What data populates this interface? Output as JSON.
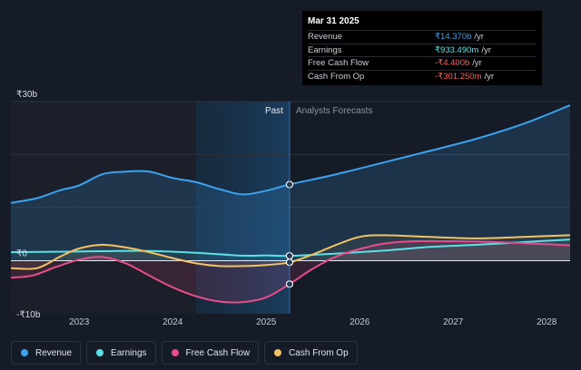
{
  "tooltip": {
    "date": "Mar 31 2025",
    "rows": [
      {
        "label": "Revenue",
        "value": "₹14.370b",
        "unit": "/yr",
        "color": "#3ba3f0"
      },
      {
        "label": "Earnings",
        "value": "₹933.490m",
        "unit": "/yr",
        "color": "#5ce1e6"
      },
      {
        "label": "Free Cash Flow",
        "value": "-₹4.400b",
        "unit": "/yr",
        "color": "#ff5c5c"
      },
      {
        "label": "Cash From Op",
        "value": "-₹301.250m",
        "unit": "/yr",
        "color": "#ff5c5c"
      }
    ]
  },
  "chart_data": {
    "type": "line",
    "x_ticks": [
      "2023",
      "2024",
      "2025",
      "2026",
      "2027",
      "2028"
    ],
    "y_ticks": [
      {
        "value": 30,
        "label": "₹30b"
      },
      {
        "value": 0,
        "label": "₹0"
      },
      {
        "value": -10,
        "label": "-₹10b"
      }
    ],
    "ylim": [
      -10.5,
      30
    ],
    "xlim": [
      2022.27,
      2028.25
    ],
    "past_label": "Past",
    "forecast_label": "Analysts Forecasts",
    "divider_x": 2025.25,
    "highlight_start": 2024.25,
    "series": [
      {
        "name": "Revenue",
        "color": "#3ba3f0",
        "points": [
          [
            2022.27,
            10.9
          ],
          [
            2022.55,
            11.8
          ],
          [
            2022.8,
            13.3
          ],
          [
            2023.0,
            14.2
          ],
          [
            2023.25,
            16.3
          ],
          [
            2023.5,
            16.8
          ],
          [
            2023.75,
            16.8
          ],
          [
            2024.0,
            15.6
          ],
          [
            2024.25,
            14.8
          ],
          [
            2024.5,
            13.5
          ],
          [
            2024.75,
            12.5
          ],
          [
            2025.0,
            13.2
          ],
          [
            2025.25,
            14.37
          ],
          [
            2025.75,
            16.3
          ],
          [
            2026.25,
            18.5
          ],
          [
            2026.75,
            20.7
          ],
          [
            2027.25,
            23.0
          ],
          [
            2027.75,
            25.8
          ],
          [
            2028.25,
            29.3
          ]
        ]
      },
      {
        "name": "Earnings",
        "color": "#5ce1e6",
        "points": [
          [
            2022.27,
            1.6
          ],
          [
            2022.75,
            1.7
          ],
          [
            2023.25,
            1.8
          ],
          [
            2023.75,
            1.85
          ],
          [
            2024.25,
            1.5
          ],
          [
            2024.75,
            0.95
          ],
          [
            2025.0,
            1.0
          ],
          [
            2025.25,
            0.93
          ],
          [
            2025.75,
            1.35
          ],
          [
            2026.25,
            1.9
          ],
          [
            2026.75,
            2.6
          ],
          [
            2027.25,
            3.0
          ],
          [
            2027.75,
            3.5
          ],
          [
            2028.25,
            4.0
          ]
        ]
      },
      {
        "name": "Free Cash Flow",
        "color": "#e84c8a",
        "points": [
          [
            2022.27,
            -3.2
          ],
          [
            2022.5,
            -2.8
          ],
          [
            2022.75,
            -1.2
          ],
          [
            2023.0,
            0.2
          ],
          [
            2023.25,
            0.7
          ],
          [
            2023.5,
            -0.5
          ],
          [
            2023.75,
            -2.8
          ],
          [
            2024.0,
            -5.0
          ],
          [
            2024.25,
            -6.7
          ],
          [
            2024.5,
            -7.7
          ],
          [
            2024.75,
            -7.8
          ],
          [
            2025.0,
            -6.9
          ],
          [
            2025.25,
            -4.4
          ],
          [
            2025.5,
            -1.5
          ],
          [
            2025.75,
            0.8
          ],
          [
            2026.0,
            2.2
          ],
          [
            2026.25,
            3.2
          ],
          [
            2026.5,
            3.6
          ],
          [
            2026.75,
            3.7
          ],
          [
            2027.25,
            3.6
          ],
          [
            2027.75,
            3.3
          ],
          [
            2028.25,
            2.9
          ]
        ]
      },
      {
        "name": "Cash From Op",
        "color": "#f2c264",
        "points": [
          [
            2022.27,
            -1.4
          ],
          [
            2022.55,
            -1.4
          ],
          [
            2022.8,
            0.8
          ],
          [
            2023.0,
            2.3
          ],
          [
            2023.25,
            3.0
          ],
          [
            2023.5,
            2.5
          ],
          [
            2023.75,
            1.6
          ],
          [
            2024.0,
            0.5
          ],
          [
            2024.25,
            -0.5
          ],
          [
            2024.5,
            -1.0
          ],
          [
            2024.75,
            -1.0
          ],
          [
            2025.0,
            -0.8
          ],
          [
            2025.25,
            -0.3
          ],
          [
            2025.5,
            1.2
          ],
          [
            2025.75,
            3.0
          ],
          [
            2026.0,
            4.5
          ],
          [
            2026.25,
            4.8
          ],
          [
            2026.75,
            4.5
          ],
          [
            2027.25,
            4.2
          ],
          [
            2027.75,
            4.5
          ],
          [
            2028.25,
            4.8
          ]
        ]
      }
    ]
  },
  "legend": [
    {
      "label": "Revenue",
      "color": "#3ba3f0"
    },
    {
      "label": "Earnings",
      "color": "#5ce1e6"
    },
    {
      "label": "Free Cash Flow",
      "color": "#e84c8a"
    },
    {
      "label": "Cash From Op",
      "color": "#f2c264"
    }
  ]
}
